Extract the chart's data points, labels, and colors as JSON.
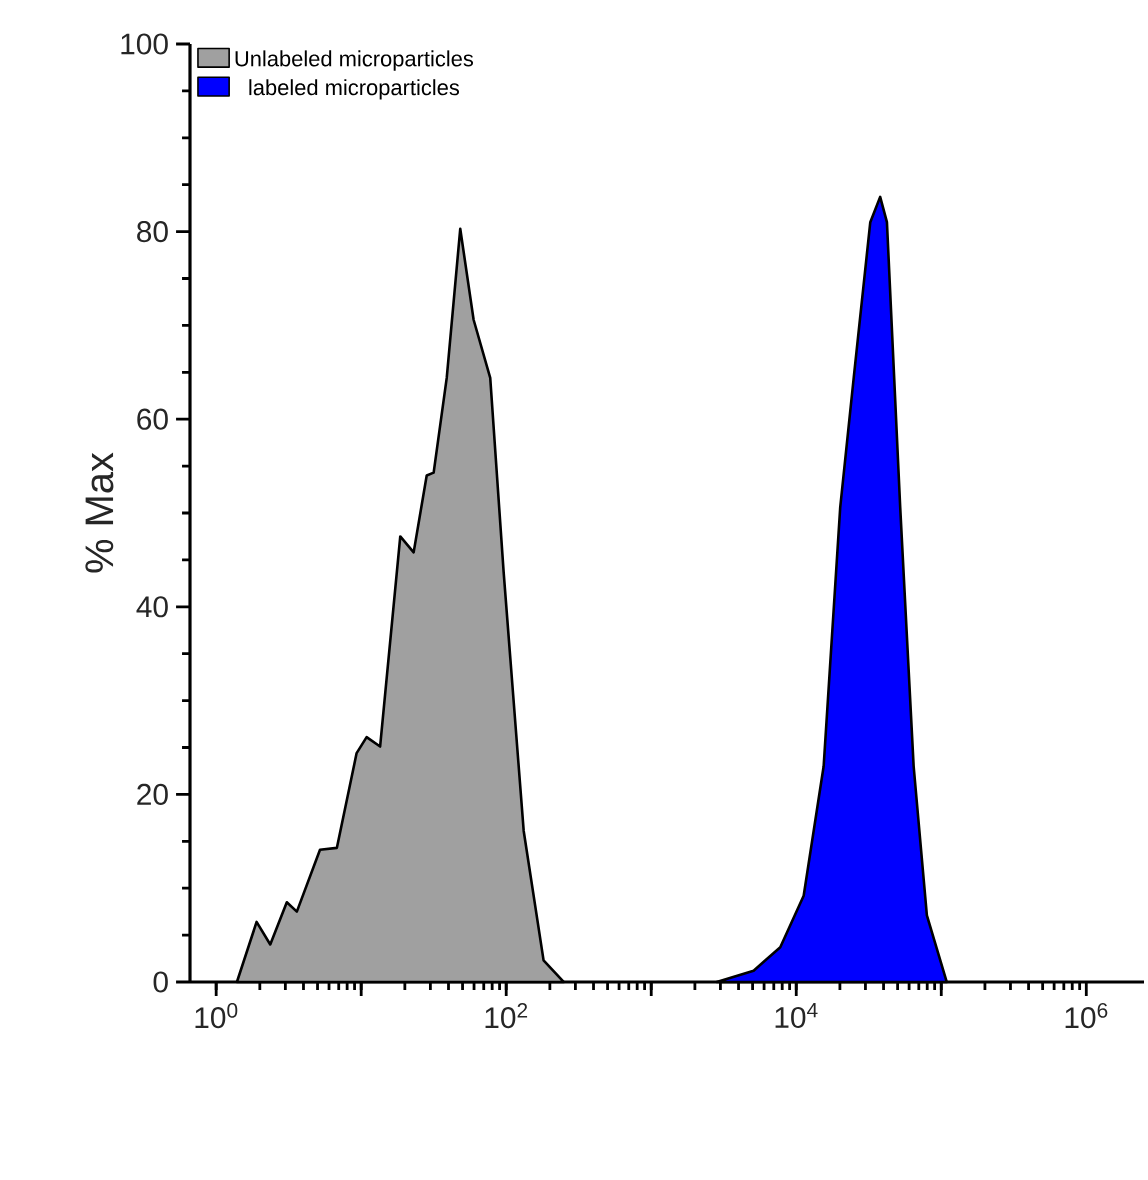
{
  "chart_data": {
    "type": "area",
    "ylabel": "% Max",
    "log": "x",
    "legend": "top left",
    "xlim": [
      0.66,
      2500000
    ],
    "ylim": [
      0,
      100
    ],
    "xticks": [
      {
        "value": 1,
        "label": "10$^{0}$"
      },
      {
        "value": 10,
        "label": null
      },
      {
        "value": 100,
        "label": "10$^{2}$"
      },
      {
        "value": 1000,
        "label": null
      },
      {
        "value": 10000,
        "label": "10$^{4}$"
      },
      {
        "value": 100000,
        "label": null
      },
      {
        "value": 1000000,
        "label": "10$^{6}$"
      }
    ],
    "yticks": [
      0,
      20,
      40,
      60,
      80,
      100
    ],
    "series": [
      {
        "name": "Unlabeled microparticles",
        "color": "#a0a0a0",
        "x": [
          1.39,
          1.9,
          2.36,
          3.07,
          3.6,
          5.2,
          6.8,
          9.3,
          10.9,
          13.5,
          18.6,
          23,
          28.3,
          31.6,
          38.9,
          48.2,
          59.6,
          77.6,
          96,
          132,
          181,
          249
        ],
        "values": [
          0,
          6.4,
          4.0,
          8.5,
          7.5,
          14.1,
          14.3,
          24.4,
          26.1,
          25.1,
          47.5,
          45.8,
          54.0,
          54.3,
          64.4,
          80.3,
          70.6,
          64.4,
          43.7,
          16.1,
          2.3,
          0
        ]
      },
      {
        "name": "labeled microparticles",
        "color": "#0000ff",
        "x": [
          2830,
          5080,
          7760,
          11250,
          15450,
          20100,
          24900,
          32400,
          37900,
          42200,
          52100,
          64500,
          79600,
          109000
        ],
        "values": [
          0,
          1.2,
          3.7,
          9.2,
          23,
          50.6,
          64.4,
          81,
          83.7,
          81,
          50.6,
          23,
          7.1,
          0
        ]
      }
    ]
  }
}
